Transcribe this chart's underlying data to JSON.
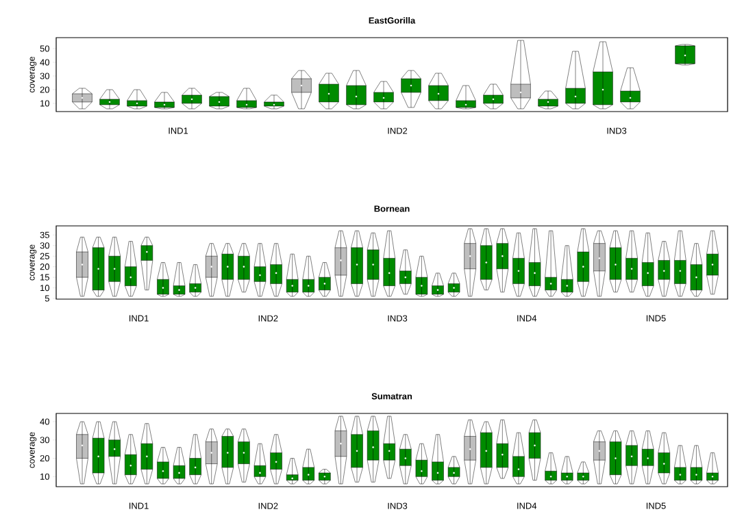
{
  "chart_data": [
    {
      "type": "box",
      "title": "EastGorilla",
      "ylabel": "coverage",
      "categories": [
        "IND1",
        "IND2",
        "IND3"
      ],
      "ylim": [
        4,
        58
      ],
      "yticks": [
        10,
        20,
        30,
        40,
        50
      ],
      "series": [
        {
          "color": "#bebebe",
          "boxes": [
            {
              "low": 6,
              "q1": 11,
              "median": 14,
              "q3": 17,
              "high": 21
            },
            {
              "low": 6,
              "q1": 18,
              "median": 23,
              "q3": 28,
              "high": 34
            },
            {
              "low": 6,
              "q1": 14,
              "median": 18,
              "q3": 24,
              "high": 56
            }
          ]
        },
        {
          "color": "#008b00",
          "boxes": [
            {
              "low": 6,
              "q1": 9,
              "median": 11,
              "q3": 13,
              "high": 20
            },
            {
              "low": 6,
              "q1": 11,
              "median": 17,
              "q3": 24,
              "high": 32
            },
            {
              "low": 6,
              "q1": 8,
              "median": 11,
              "q3": 13,
              "high": 19
            }
          ]
        },
        {
          "color": "#008b00",
          "boxes": [
            {
              "low": 6,
              "q1": 8,
              "median": 10,
              "q3": 12,
              "high": 20
            },
            {
              "low": 6,
              "q1": 9,
              "median": 15,
              "q3": 23,
              "high": 34
            },
            {
              "low": 6,
              "q1": 10,
              "median": 15,
              "q3": 21,
              "high": 48
            }
          ]
        },
        {
          "color": "#008b00",
          "boxes": [
            {
              "low": 6,
              "q1": 7,
              "median": 9,
              "q3": 11,
              "high": 18
            },
            {
              "low": 6,
              "q1": 11,
              "median": 14,
              "q3": 18,
              "high": 26
            },
            {
              "low": 6,
              "q1": 9,
              "median": 20,
              "q3": 33,
              "high": 55
            }
          ]
        },
        {
          "color": "#008b00",
          "boxes": [
            {
              "low": 6,
              "q1": 10,
              "median": 13,
              "q3": 16,
              "high": 21
            },
            {
              "low": 7,
              "q1": 18,
              "median": 23,
              "q3": 28,
              "high": 34
            },
            {
              "low": 6,
              "q1": 11,
              "median": 14,
              "q3": 19,
              "high": 36
            }
          ]
        },
        {
          "color": "#008b00",
          "boxes": [
            {
              "low": 6,
              "q1": 8,
              "median": 11,
              "q3": 15,
              "high": 18
            },
            {
              "low": 6,
              "q1": 12,
              "median": 17,
              "q3": 23,
              "high": 32
            },
            null
          ]
        },
        {
          "color": "#008b00",
          "boxes": [
            {
              "low": 6,
              "q1": 7,
              "median": 9,
              "q3": 12,
              "high": 21
            },
            {
              "low": 6,
              "q1": 7,
              "median": 9,
              "q3": 12,
              "high": 23
            },
            {
              "low": 38,
              "q1": 39,
              "median": 45,
              "q3": 52,
              "high": 53
            }
          ]
        },
        {
          "color": "#008b00",
          "boxes": [
            {
              "low": 6,
              "q1": 8,
              "median": 9,
              "q3": 11,
              "high": 16
            },
            {
              "low": 6,
              "q1": 10,
              "median": 13,
              "q3": 16,
              "high": 24
            },
            null
          ]
        }
      ]
    },
    {
      "type": "box",
      "title": "Bornean",
      "ylabel": "coverage",
      "categories": [
        "IND1",
        "IND2",
        "IND3",
        "IND4",
        "IND5"
      ],
      "ylim": [
        4.7,
        39.3
      ],
      "yticks": [
        5,
        10,
        15,
        20,
        25,
        30,
        35
      ],
      "series": [
        {
          "color": "#bebebe",
          "boxes": [
            {
              "low": 6,
              "q1": 15,
              "median": 21,
              "q3": 27,
              "high": 34
            },
            {
              "low": 6,
              "q1": 15,
              "median": 20,
              "q3": 25,
              "high": 31
            },
            {
              "low": 6,
              "q1": 16,
              "median": 23,
              "q3": 29,
              "high": 37
            },
            {
              "low": 6,
              "q1": 19,
              "median": 25,
              "q3": 31,
              "high": 38
            },
            {
              "low": 6,
              "q1": 18,
              "median": 24,
              "q3": 31,
              "high": 37
            }
          ]
        },
        {
          "color": "#008b00",
          "boxes": [
            {
              "low": 6,
              "q1": 9,
              "median": 19,
              "q3": 29,
              "high": 34
            },
            {
              "low": 6,
              "q1": 14,
              "median": 20,
              "q3": 26,
              "high": 31
            },
            {
              "low": 6,
              "q1": 12,
              "median": 21,
              "q3": 29,
              "high": 37
            },
            {
              "low": 9,
              "q1": 14,
              "median": 22,
              "q3": 30,
              "high": 38
            },
            {
              "low": 8,
              "q1": 14,
              "median": 21,
              "q3": 29,
              "high": 37
            }
          ]
        },
        {
          "color": "#008b00",
          "boxes": [
            {
              "low": 6,
              "q1": 13,
              "median": 19,
              "q3": 25,
              "high": 34
            },
            {
              "low": 8,
              "q1": 14,
              "median": 20,
              "q3": 25,
              "high": 31
            },
            {
              "low": 6,
              "q1": 14,
              "median": 21,
              "q3": 28,
              "high": 36
            },
            {
              "low": 8,
              "q1": 19,
              "median": 25,
              "q3": 31,
              "high": 38
            },
            {
              "low": 8,
              "q1": 14,
              "median": 19,
              "q3": 24,
              "high": 37
            }
          ]
        },
        {
          "color": "#008b00",
          "boxes": [
            {
              "low": 6,
              "q1": 11,
              "median": 15,
              "q3": 20,
              "high": 32
            },
            {
              "low": 6,
              "q1": 13,
              "median": 16,
              "q3": 20,
              "high": 31
            },
            {
              "low": 6,
              "q1": 11,
              "median": 17,
              "q3": 24,
              "high": 37
            },
            {
              "low": 6,
              "q1": 12,
              "median": 18,
              "q3": 24,
              "high": 36
            },
            {
              "low": 6,
              "q1": 11,
              "median": 17,
              "q3": 22,
              "high": 36
            }
          ]
        },
        {
          "color": "#008b00",
          "boxes": [
            {
              "low": 9,
              "q1": 23,
              "median": 27,
              "q3": 30,
              "high": 34
            },
            {
              "low": 6,
              "q1": 12,
              "median": 17,
              "q3": 21,
              "high": 31
            },
            {
              "low": 7,
              "q1": 12,
              "median": 15,
              "q3": 18,
              "high": 28
            },
            {
              "low": 6,
              "q1": 11,
              "median": 17,
              "q3": 22,
              "high": 38
            },
            {
              "low": 6,
              "q1": 14,
              "median": 18,
              "q3": 23,
              "high": 32
            }
          ]
        },
        {
          "color": "#008b00",
          "boxes": [
            {
              "low": 6,
              "q1": 7,
              "median": 10,
              "q3": 14,
              "high": 22
            },
            {
              "low": 6,
              "q1": 8,
              "median": 11,
              "q3": 14,
              "high": 26
            },
            {
              "low": 6,
              "q1": 7,
              "median": 11,
              "q3": 15,
              "high": 25
            },
            {
              "low": 6,
              "q1": 9,
              "median": 12,
              "q3": 15,
              "high": 37
            },
            {
              "low": 6,
              "q1": 12,
              "median": 18,
              "q3": 23,
              "high": 37
            }
          ]
        },
        {
          "color": "#008b00",
          "boxes": [
            {
              "low": 6,
              "q1": 7,
              "median": 9,
              "q3": 11,
              "high": 22
            },
            {
              "low": 6,
              "q1": 8,
              "median": 11,
              "q3": 14,
              "high": 25
            },
            {
              "low": 6,
              "q1": 7,
              "median": 9,
              "q3": 11,
              "high": 17
            },
            {
              "low": 6,
              "q1": 8,
              "median": 11,
              "q3": 14,
              "high": 30
            },
            {
              "low": 6,
              "q1": 9,
              "median": 15,
              "q3": 21,
              "high": 31
            }
          ]
        },
        {
          "color": "#008b00",
          "boxes": [
            {
              "low": 6,
              "q1": 8,
              "median": 10,
              "q3": 12,
              "high": 21
            },
            {
              "low": 6,
              "q1": 9,
              "median": 12,
              "q3": 15,
              "high": 22
            },
            {
              "low": 6,
              "q1": 8,
              "median": 10,
              "q3": 12,
              "high": 17
            },
            {
              "low": 6,
              "q1": 13,
              "median": 20,
              "q3": 27,
              "high": 38
            },
            {
              "low": 7,
              "q1": 16,
              "median": 21,
              "q3": 26,
              "high": 37
            }
          ]
        }
      ]
    },
    {
      "type": "box",
      "title": "Sumatran",
      "ylabel": "coverage",
      "categories": [
        "IND1",
        "IND2",
        "IND3",
        "IND4",
        "IND5"
      ],
      "ylim": [
        4.5,
        44.5
      ],
      "yticks": [
        10,
        20,
        30,
        40
      ],
      "series": [
        {
          "color": "#bebebe",
          "boxes": [
            {
              "low": 6,
              "q1": 20,
              "median": 27,
              "q3": 33,
              "high": 40
            },
            {
              "low": 6,
              "q1": 17,
              "median": 23,
              "q3": 29,
              "high": 36
            },
            {
              "low": 6,
              "q1": 21,
              "median": 28,
              "q3": 35,
              "high": 43
            },
            {
              "low": 6,
              "q1": 19,
              "median": 25,
              "q3": 32,
              "high": 41
            },
            {
              "low": 6,
              "q1": 19,
              "median": 24,
              "q3": 29,
              "high": 35
            }
          ]
        },
        {
          "color": "#008b00",
          "boxes": [
            {
              "low": 6,
              "q1": 12,
              "median": 21,
              "q3": 31,
              "high": 40
            },
            {
              "low": 6,
              "q1": 15,
              "median": 23,
              "q3": 32,
              "high": 36
            },
            {
              "low": 7,
              "q1": 15,
              "median": 24,
              "q3": 33,
              "high": 43
            },
            {
              "low": 6,
              "q1": 15,
              "median": 24,
              "q3": 34,
              "high": 40
            },
            {
              "low": 6,
              "q1": 11,
              "median": 20,
              "q3": 29,
              "high": 35
            }
          ]
        },
        {
          "color": "#008b00",
          "boxes": [
            {
              "low": 6,
              "q1": 21,
              "median": 25,
              "q3": 30,
              "high": 40
            },
            {
              "low": 7,
              "q1": 17,
              "median": 23,
              "q3": 29,
              "high": 36
            },
            {
              "low": 7,
              "q1": 19,
              "median": 26,
              "q3": 35,
              "high": 43
            },
            {
              "low": 9,
              "q1": 15,
              "median": 22,
              "q3": 28,
              "high": 41
            },
            {
              "low": 6,
              "q1": 16,
              "median": 21,
              "q3": 27,
              "high": 35
            }
          ]
        },
        {
          "color": "#008b00",
          "boxes": [
            {
              "low": 6,
              "q1": 11,
              "median": 16,
              "q3": 22,
              "high": 33
            },
            {
              "low": 6,
              "q1": 10,
              "median": 12,
              "q3": 16,
              "high": 28
            },
            {
              "low": 9,
              "q1": 19,
              "median": 24,
              "q3": 28,
              "high": 43
            },
            {
              "low": 6,
              "q1": 10,
              "median": 14,
              "q3": 21,
              "high": 34
            },
            {
              "low": 6,
              "q1": 16,
              "median": 20,
              "q3": 25,
              "high": 35
            }
          ]
        },
        {
          "color": "#008b00",
          "boxes": [
            {
              "low": 6,
              "q1": 14,
              "median": 21,
              "q3": 28,
              "high": 39
            },
            {
              "low": 6,
              "q1": 14,
              "median": 18,
              "q3": 23,
              "high": 33
            },
            {
              "low": 6,
              "q1": 16,
              "median": 20,
              "q3": 25,
              "high": 33
            },
            {
              "low": 8,
              "q1": 20,
              "median": 27,
              "q3": 34,
              "high": 41
            },
            {
              "low": 6,
              "q1": 12,
              "median": 17,
              "q3": 23,
              "high": 34
            }
          ]
        },
        {
          "color": "#008b00",
          "boxes": [
            {
              "low": 6,
              "q1": 9,
              "median": 13,
              "q3": 18,
              "high": 26
            },
            {
              "low": 6,
              "q1": 8,
              "median": 9,
              "q3": 11,
              "high": 20
            },
            {
              "low": 6,
              "q1": 10,
              "median": 13,
              "q3": 19,
              "high": 28
            },
            {
              "low": 6,
              "q1": 8,
              "median": 10,
              "q3": 13,
              "high": 23
            },
            {
              "low": 6,
              "q1": 8,
              "median": 11,
              "q3": 15,
              "high": 27
            }
          ]
        },
        {
          "color": "#008b00",
          "boxes": [
            {
              "low": 6,
              "q1": 9,
              "median": 12,
              "q3": 16,
              "high": 26
            },
            {
              "low": 6,
              "q1": 8,
              "median": 11,
              "q3": 15,
              "high": 25
            },
            {
              "low": 6,
              "q1": 8,
              "median": 12,
              "q3": 18,
              "high": 33
            },
            {
              "low": 6,
              "q1": 8,
              "median": 10,
              "q3": 12,
              "high": 21
            },
            {
              "low": 6,
              "q1": 8,
              "median": 11,
              "q3": 15,
              "high": 27
            }
          ]
        },
        {
          "color": "#008b00",
          "boxes": [
            {
              "low": 6,
              "q1": 11,
              "median": 15,
              "q3": 20,
              "high": 33
            },
            {
              "low": 6,
              "q1": 8,
              "median": 10,
              "q3": 12,
              "high": 14
            },
            {
              "low": 6,
              "q1": 10,
              "median": 12,
              "q3": 15,
              "high": 21
            },
            {
              "low": 6,
              "q1": 8,
              "median": 10,
              "q3": 12,
              "high": 18
            },
            {
              "low": 6,
              "q1": 8,
              "median": 10,
              "q3": 12,
              "high": 23
            }
          ]
        }
      ]
    }
  ]
}
